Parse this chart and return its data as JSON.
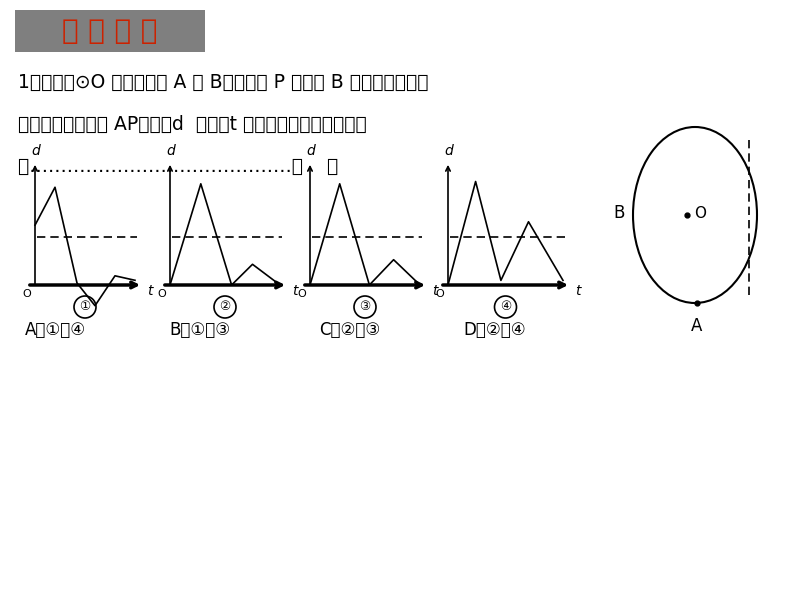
{
  "bg_color": "#ffffff",
  "title_box_color": "#7f7f7f",
  "title_text": "典 型 例 题",
  "title_text_color": "#cc2200",
  "line1": "1、如图，⊙O 上有两定点 A 与 B，若动点 P 点从点 B 出发在圆上匀速",
  "line2": "运动一周，那么弦 AP的长度d  与时间t 的关系可能是下列图形中",
  "line3": "的……………………………………【    】",
  "answer_A": "A、①或④",
  "answer_B": "B、①或③",
  "answer_C": "C、②或③",
  "answer_D": "D、②或④",
  "graph_labels": [
    "①",
    "②",
    "③",
    "④"
  ]
}
